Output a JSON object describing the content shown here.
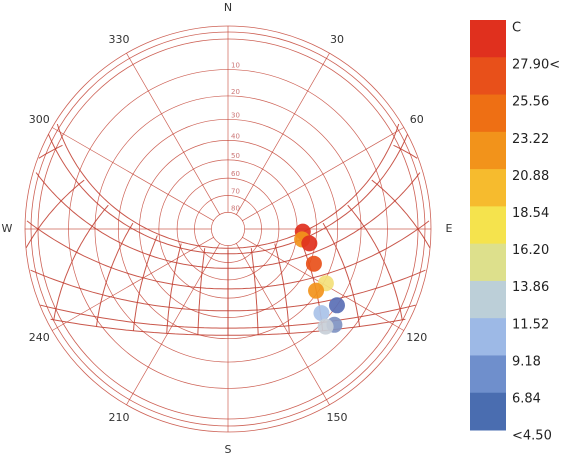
{
  "chart_data": {
    "type": "sunpath",
    "cardinal_labels": [
      {
        "value": 0,
        "label": "N"
      },
      {
        "value": 90,
        "label": "E"
      },
      {
        "value": 180,
        "label": "S"
      },
      {
        "value": 270,
        "label": "W"
      }
    ],
    "azimuth_ticks": [
      30,
      60,
      120,
      150,
      210,
      240,
      300,
      330
    ],
    "altitude_ticks": [
      10,
      20,
      30,
      40,
      50,
      60,
      70,
      80
    ],
    "line_color": "#c0392b",
    "points": [
      {
        "azimuth": 92,
        "altitude": 47,
        "color": "#e0301e"
      },
      {
        "azimuth": 98,
        "altitude": 47,
        "color": "#f2931b"
      },
      {
        "azimuth": 100,
        "altitude": 43,
        "color": "#e0301e"
      },
      {
        "azimuth": 112,
        "altitude": 38,
        "color": "#e8501a"
      },
      {
        "azimuth": 119,
        "altitude": 29,
        "color": "#f3e07a"
      },
      {
        "azimuth": 125,
        "altitude": 31,
        "color": "#f2931b"
      },
      {
        "azimuth": 125,
        "altitude": 20,
        "color": "#5a6fb5"
      },
      {
        "azimuth": 132,
        "altitude": 23,
        "color": "#a9c2e8"
      },
      {
        "azimuth": 132,
        "altitude": 16,
        "color": "#7f93c2"
      },
      {
        "azimuth": 135,
        "altitude": 18,
        "color": "#c8cfd8"
      }
    ],
    "legend": {
      "title": "C",
      "labels": [
        "27.90<",
        "25.56",
        "23.22",
        "20.88",
        "18.54",
        "16.20",
        "13.86",
        "11.52",
        "9.18",
        "6.84",
        "<4.50"
      ],
      "colors": [
        "#e0301e",
        "#e8501a",
        "#ee6f14",
        "#f2931b",
        "#f6bb2e",
        "#f5e34d",
        "#dde08c",
        "#bccfd8",
        "#9db9e6",
        "#6f8fcc",
        "#4a6db0"
      ]
    }
  }
}
